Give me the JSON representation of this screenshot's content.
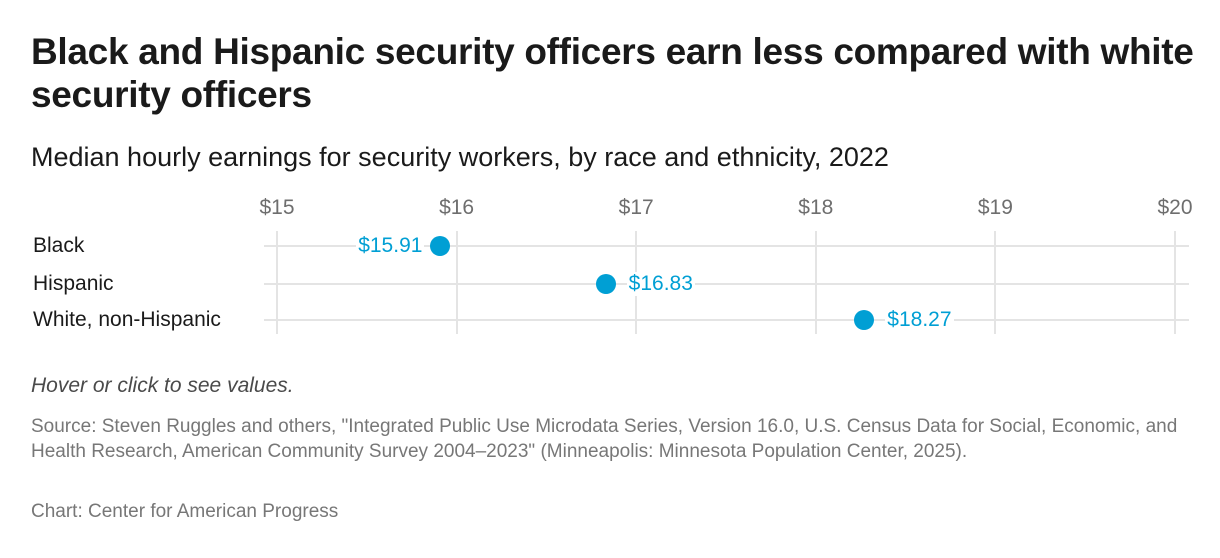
{
  "header": {
    "title": "Black and Hispanic security officers earn less compared with white security officers",
    "subtitle": "Median hourly earnings for security workers, by race and ethnicity, 2022"
  },
  "colors": {
    "accent": "#009fd4",
    "grid": "#e4e4e4",
    "tick_text": "#6e6e6e",
    "text": "#1a1a1a"
  },
  "chart_data": {
    "type": "scatter",
    "subtype": "dot-plot",
    "title": "Black and Hispanic security officers earn less compared with white security officers",
    "subtitle": "Median hourly earnings for security workers, by race and ethnicity, 2022",
    "categories": [
      "Black",
      "Hispanic",
      "White, non-Hispanic"
    ],
    "values": [
      15.91,
      16.83,
      18.27
    ],
    "value_labels": [
      "$15.91",
      "$16.83",
      "$18.27"
    ],
    "label_side": [
      "left",
      "right",
      "right"
    ],
    "x_ticks": [
      15,
      16,
      17,
      18,
      19,
      20
    ],
    "x_tick_labels": [
      "$15",
      "$16",
      "$17",
      "$18",
      "$19",
      "$20"
    ],
    "xlim": [
      15,
      20
    ],
    "xlabel": "",
    "ylabel": "",
    "x_axis_position": "top",
    "grid": true,
    "legend": null
  },
  "footer": {
    "notes": "Hover or click to see values.",
    "source": "Source: Steven Ruggles and others, \"Integrated Public Use Microdata Series, Version 16.0, U.S. Census Data for Social, Economic, and Health Research, American Community Survey 2004–2023\" (Minneapolis: Minnesota Population Center, 2025).",
    "credit": "Chart: Center for American Progress"
  }
}
